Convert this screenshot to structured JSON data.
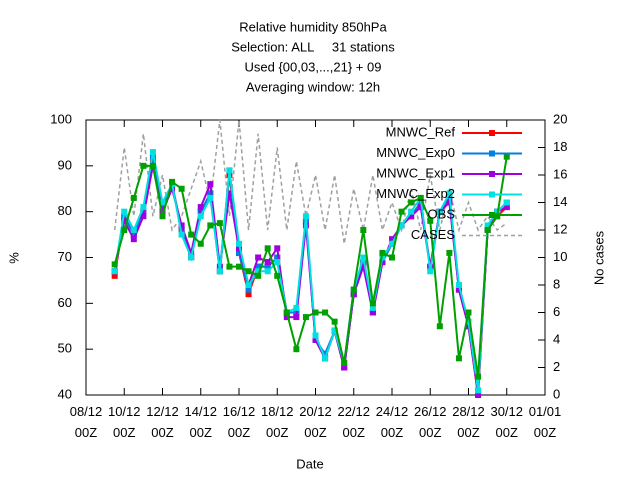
{
  "chart_data": {
    "type": "line",
    "title": [
      "Relative humidity 850hPa",
      "Selection: ALL     31 stations",
      "Used {00,03,...,21} + 09",
      "Averaging window: 12h"
    ],
    "xlabel": "Date",
    "ylabel": "%",
    "y2label": "No cases",
    "x": [
      "09/12 12Z",
      "10/12 00Z",
      "10/12 12Z",
      "11/12 00Z",
      "11/12 12Z",
      "12/12 00Z",
      "12/12 12Z",
      "13/12 00Z",
      "13/12 12Z",
      "14/12 00Z",
      "14/12 12Z",
      "15/12 00Z",
      "15/12 12Z",
      "16/12 00Z",
      "16/12 12Z",
      "17/12 00Z",
      "17/12 12Z",
      "18/12 00Z",
      "18/12 12Z",
      "19/12 00Z",
      "19/12 12Z",
      "20/12 00Z",
      "20/12 12Z",
      "21/12 00Z",
      "21/12 12Z",
      "22/12 00Z",
      "22/12 12Z",
      "23/12 00Z",
      "23/12 12Z",
      "24/12 00Z",
      "24/12 12Z",
      "25/12 00Z",
      "25/12 12Z",
      "26/12 00Z",
      "26/12 12Z",
      "27/12 00Z",
      "27/12 12Z",
      "28/12 00Z",
      "28/12 12Z",
      "29/12 00Z",
      "29/12 12Z",
      "30/12 00Z"
    ],
    "xlim": [
      "08/12 00Z",
      "01/01 00Z"
    ],
    "xticks": [
      {
        "value": "08/12 00Z",
        "label": "08/12\n00Z"
      },
      {
        "value": "10/12 00Z",
        "label": "10/12\n00Z"
      },
      {
        "value": "12/12 00Z",
        "label": "12/12\n00Z"
      },
      {
        "value": "14/12 00Z",
        "label": "14/12\n00Z"
      },
      {
        "value": "16/12 00Z",
        "label": "16/12\n00Z"
      },
      {
        "value": "18/12 00Z",
        "label": "18/12\n00Z"
      },
      {
        "value": "20/12 00Z",
        "label": "20/12\n00Z"
      },
      {
        "value": "22/12 00Z",
        "label": "22/12\n00Z"
      },
      {
        "value": "24/12 00Z",
        "label": "24/12\n00Z"
      },
      {
        "value": "26/12 00Z",
        "label": "26/12\n00Z"
      },
      {
        "value": "28/12 00Z",
        "label": "28/12\n00Z"
      },
      {
        "value": "30/12 00Z",
        "label": "30/12\n00Z"
      },
      {
        "value": "01/01 00Z",
        "label": "01/01\n00Z"
      }
    ],
    "ylim": [
      40,
      100
    ],
    "yticks": [
      40,
      50,
      60,
      70,
      80,
      90,
      100
    ],
    "y2lim": [
      0,
      20
    ],
    "y2ticks": [
      0,
      2,
      4,
      6,
      8,
      10,
      12,
      14,
      16,
      18,
      20
    ],
    "legend": "top-right",
    "series": [
      {
        "name": "MNWC_Ref",
        "color": "#ff0000",
        "values": [
          66,
          79,
          75,
          80,
          91,
          81,
          86,
          76,
          70,
          80,
          84,
          67,
          88,
          71,
          62,
          68,
          68,
          70,
          58,
          58,
          78,
          52,
          48,
          54,
          46,
          62,
          69,
          58,
          69,
          73,
          77,
          79,
          82,
          68,
          80,
          83,
          63,
          55,
          40,
          76,
          79,
          81
        ]
      },
      {
        "name": "MNWC_Exp0",
        "color": "#0080e0",
        "values": [
          67,
          79,
          75,
          80,
          92,
          81,
          86,
          76,
          70,
          80,
          84,
          67,
          89,
          71,
          63,
          68,
          68,
          70,
          58,
          58,
          78,
          52,
          49,
          54,
          46,
          62,
          69,
          58,
          69,
          73,
          77,
          79,
          82,
          68,
          80,
          83,
          63,
          55,
          41,
          76,
          80,
          82
        ]
      },
      {
        "name": "MNWC_Exp1",
        "color": "#a000e0",
        "values": [
          67,
          78,
          74,
          79,
          90,
          80,
          85,
          77,
          71,
          81,
          86,
          68,
          84,
          72,
          64,
          70,
          69,
          72,
          57,
          57,
          77,
          52,
          48,
          54,
          46,
          62,
          68,
          58,
          69,
          74,
          77,
          79,
          81,
          68,
          80,
          82,
          63,
          55,
          40,
          76,
          80,
          81
        ]
      },
      {
        "name": "MNWC_Exp2",
        "color": "#00e0e0",
        "values": [
          67,
          80,
          76,
          81,
          93,
          82,
          86,
          75,
          70,
          79,
          83,
          67,
          89,
          73,
          64,
          67,
          67,
          69,
          58,
          59,
          79,
          53,
          48,
          54,
          47,
          63,
          70,
          59,
          70,
          73,
          77,
          80,
          83,
          67,
          80,
          84,
          64,
          56,
          41,
          77,
          80,
          82
        ]
      },
      {
        "name": "OBS",
        "color": "#00a000",
        "values": [
          68.5,
          76,
          83,
          90,
          90,
          79,
          86.5,
          85,
          75,
          73,
          77,
          77.5,
          68,
          68,
          67,
          66,
          72,
          66,
          58,
          50,
          57,
          58,
          58,
          56,
          47,
          63,
          76,
          60,
          71,
          70,
          80,
          82,
          83,
          78,
          55,
          71,
          48,
          58,
          44,
          76,
          79,
          92
        ]
      },
      {
        "name": "CASES",
        "color": "#a0a0a0",
        "axis": "y2",
        "dashed": true,
        "values": [
          12,
          18,
          13,
          19,
          13,
          16,
          12,
          13,
          15,
          17,
          14,
          20,
          13,
          20,
          12,
          19,
          12,
          18,
          12,
          17,
          13,
          16,
          12,
          16,
          11,
          15,
          12,
          16,
          12,
          14,
          12,
          15,
          12,
          16,
          12,
          15,
          12,
          14,
          12,
          13,
          12,
          12.5
        ]
      }
    ]
  }
}
